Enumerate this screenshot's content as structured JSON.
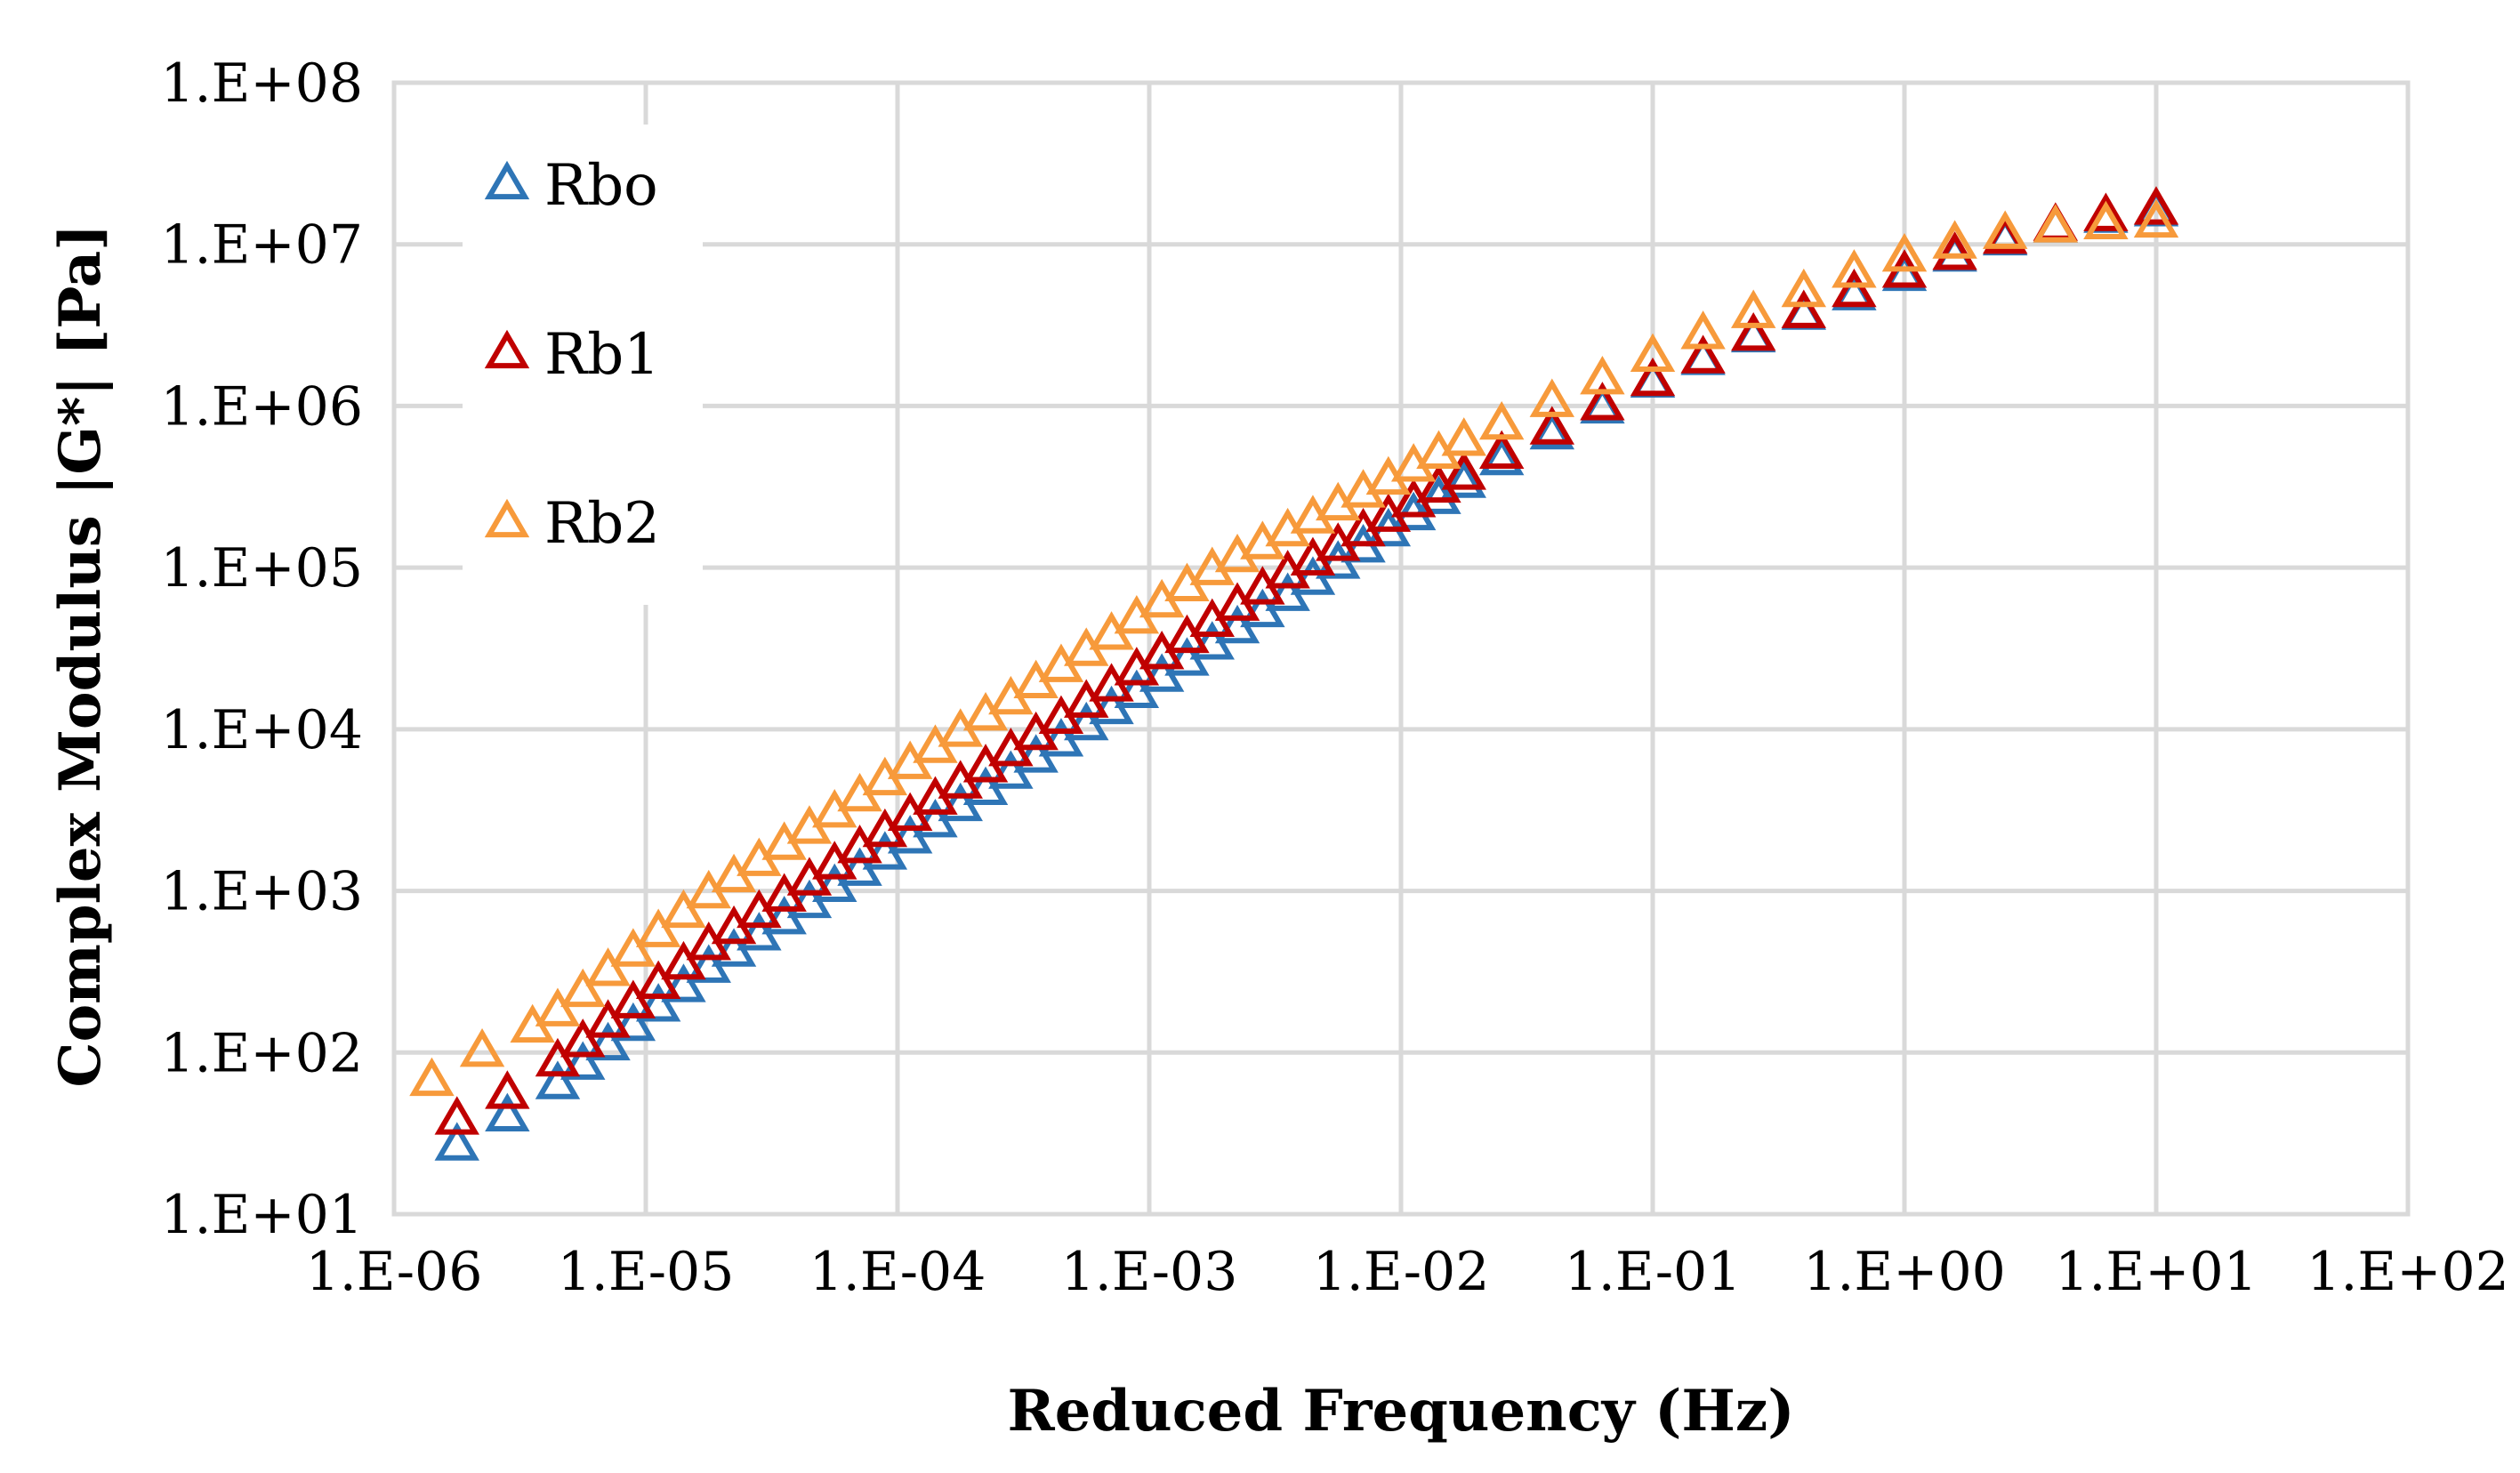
{
  "chart_data": {
    "type": "scatter",
    "title": "",
    "xlabel": "Reduced Frequency (Hz)",
    "ylabel": "Complex Modulus |G*| [Pa]",
    "xscale": "log",
    "yscale": "log",
    "xlim": [
      1e-06,
      100
    ],
    "ylim": [
      10,
      100000000
    ],
    "grid": true,
    "legend_position": "top-left",
    "x_tick_labels": [
      "1.E-06",
      "1.E-05",
      "1.E-04",
      "1.E-03",
      "1.E-02",
      "1.E-01",
      "1.E+00",
      "1.E+01",
      "1.E+02"
    ],
    "y_tick_labels": [
      "1.E+01",
      "1.E+02",
      "1.E+03",
      "1.E+04",
      "1.E+05",
      "1.E+06",
      "1.E+07",
      "1.E+08"
    ],
    "series": [
      {
        "name": "Rbo",
        "color": "#2e75b6",
        "log10_x": [
          -5.75,
          -5.55,
          -5.35,
          -5.25,
          -5.15,
          -5.05,
          -4.95,
          -4.85,
          -4.75,
          -4.65,
          -4.55,
          -4.45,
          -4.35,
          -4.25,
          -4.15,
          -4.05,
          -3.95,
          -3.85,
          -3.75,
          -3.65,
          -3.55,
          -3.45,
          -3.35,
          -3.25,
          -3.15,
          -3.05,
          -2.95,
          -2.85,
          -2.75,
          -2.65,
          -2.55,
          -2.45,
          -2.35,
          -2.25,
          -2.15,
          -2.05,
          -1.95,
          -1.85,
          -1.75,
          -1.6,
          -1.4,
          -1.2,
          -1.0,
          -0.8,
          -0.6,
          -0.4,
          -0.2,
          0.0,
          0.2,
          0.4,
          0.6,
          0.8,
          1.0
        ],
        "log10_y": [
          1.42,
          1.6,
          1.8,
          1.92,
          2.04,
          2.16,
          2.28,
          2.4,
          2.52,
          2.62,
          2.72,
          2.82,
          2.92,
          3.02,
          3.12,
          3.22,
          3.32,
          3.42,
          3.52,
          3.62,
          3.72,
          3.82,
          3.92,
          4.02,
          4.12,
          4.22,
          4.32,
          4.42,
          4.52,
          4.62,
          4.72,
          4.82,
          4.92,
          5.02,
          5.12,
          5.22,
          5.32,
          5.42,
          5.52,
          5.66,
          5.82,
          5.98,
          6.14,
          6.28,
          6.42,
          6.56,
          6.68,
          6.8,
          6.92,
          7.02,
          7.1,
          7.16,
          7.2
        ]
      },
      {
        "name": "Rb1",
        "color": "#c00000",
        "log10_x": [
          -5.75,
          -5.55,
          -5.35,
          -5.25,
          -5.15,
          -5.05,
          -4.95,
          -4.85,
          -4.75,
          -4.65,
          -4.55,
          -4.45,
          -4.35,
          -4.25,
          -4.15,
          -4.05,
          -3.95,
          -3.85,
          -3.75,
          -3.65,
          -3.55,
          -3.45,
          -3.35,
          -3.25,
          -3.15,
          -3.05,
          -2.95,
          -2.85,
          -2.75,
          -2.65,
          -2.55,
          -2.45,
          -2.35,
          -2.25,
          -2.15,
          -2.05,
          -1.95,
          -1.85,
          -1.75,
          -1.6,
          -1.4,
          -1.2,
          -1.0,
          -0.8,
          -0.6,
          -0.4,
          -0.2,
          0.0,
          0.2,
          0.4,
          0.6,
          0.8,
          1.0
        ],
        "log10_y": [
          1.58,
          1.74,
          1.94,
          2.06,
          2.18,
          2.3,
          2.42,
          2.54,
          2.66,
          2.76,
          2.86,
          2.96,
          3.06,
          3.16,
          3.26,
          3.36,
          3.46,
          3.56,
          3.66,
          3.76,
          3.86,
          3.96,
          4.06,
          4.16,
          4.26,
          4.36,
          4.46,
          4.56,
          4.66,
          4.76,
          4.86,
          4.96,
          5.04,
          5.13,
          5.22,
          5.31,
          5.4,
          5.49,
          5.57,
          5.7,
          5.85,
          6.0,
          6.15,
          6.29,
          6.43,
          6.57,
          6.7,
          6.82,
          6.93,
          7.03,
          7.11,
          7.17,
          7.21
        ]
      },
      {
        "name": "Rb2",
        "color": "#f79a3b",
        "log10_x": [
          -5.85,
          -5.65,
          -5.45,
          -5.35,
          -5.25,
          -5.15,
          -5.05,
          -4.95,
          -4.85,
          -4.75,
          -4.65,
          -4.55,
          -4.45,
          -4.35,
          -4.25,
          -4.15,
          -4.05,
          -3.95,
          -3.85,
          -3.75,
          -3.65,
          -3.55,
          -3.45,
          -3.35,
          -3.25,
          -3.15,
          -3.05,
          -2.95,
          -2.85,
          -2.75,
          -2.65,
          -2.55,
          -2.45,
          -2.35,
          -2.25,
          -2.15,
          -2.05,
          -1.95,
          -1.85,
          -1.75,
          -1.6,
          -1.4,
          -1.2,
          -1.0,
          -0.8,
          -0.6,
          -0.4,
          -0.2,
          0.0,
          0.2,
          0.4,
          0.6,
          0.8,
          1.0
        ],
        "log10_y": [
          1.82,
          2.0,
          2.15,
          2.25,
          2.37,
          2.5,
          2.62,
          2.74,
          2.86,
          2.98,
          3.08,
          3.18,
          3.28,
          3.38,
          3.48,
          3.58,
          3.68,
          3.78,
          3.88,
          3.98,
          4.08,
          4.18,
          4.28,
          4.38,
          4.48,
          4.58,
          4.68,
          4.78,
          4.88,
          4.98,
          5.06,
          5.14,
          5.22,
          5.3,
          5.38,
          5.46,
          5.54,
          5.62,
          5.7,
          5.78,
          5.88,
          6.02,
          6.16,
          6.3,
          6.44,
          6.57,
          6.7,
          6.82,
          6.92,
          7.0,
          7.06,
          7.1,
          7.12,
          7.13
        ]
      }
    ]
  }
}
